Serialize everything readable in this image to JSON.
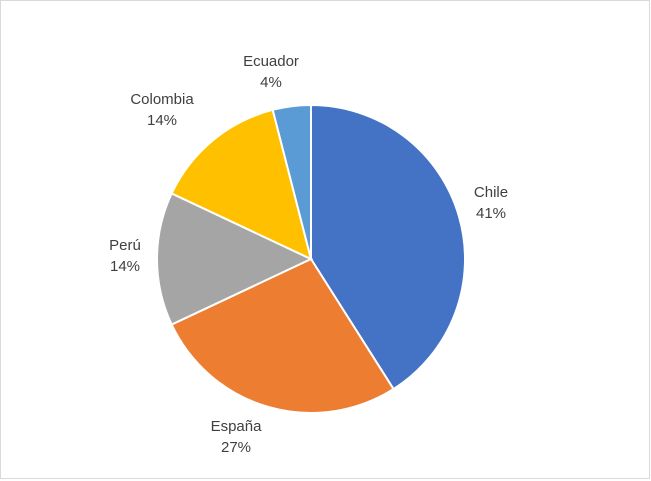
{
  "chart_data": {
    "type": "pie",
    "slices": [
      {
        "category": "Chile",
        "percent_label": "41%",
        "value": 41,
        "color": "#4472C4"
      },
      {
        "category": "España",
        "percent_label": "27%",
        "value": 27,
        "color": "#ED7D31"
      },
      {
        "category": "Perú",
        "percent_label": "14%",
        "value": 14,
        "color": "#A5A5A5"
      },
      {
        "category": "Colombia",
        "percent_label": "14%",
        "value": 14,
        "color": "#FFC000"
      },
      {
        "category": "Ecuador",
        "percent_label": "4%",
        "value": 4,
        "color": "#5B9BD5"
      }
    ],
    "legend": "none",
    "data_labels": "category and percentage"
  }
}
